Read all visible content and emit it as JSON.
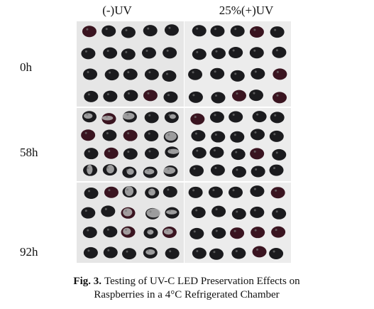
{
  "columns": [
    "(-)UV",
    "25%(+)UV"
  ],
  "rows": [
    "0h",
    "58h",
    "92h"
  ],
  "caption": {
    "label": "Fig. 3.",
    "lines": [
      "Testing of UV-C LED Preservation Effects on",
      "Raspberries in a 4°C Refrigerated Chamber"
    ]
  }
}
